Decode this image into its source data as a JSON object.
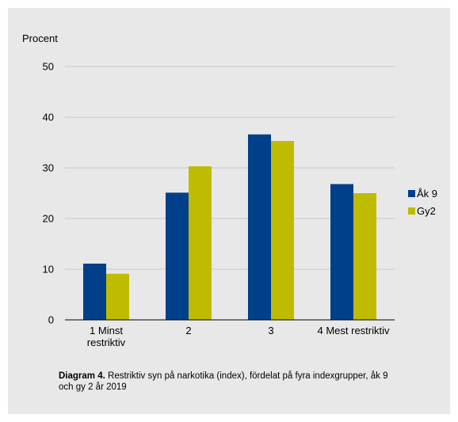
{
  "chart_data": {
    "type": "bar",
    "ylabel": "Procent",
    "ylim": [
      0,
      50
    ],
    "yticks": [
      0,
      10,
      20,
      30,
      40,
      50
    ],
    "grid": true,
    "legend_position": "right",
    "categories": [
      [
        "1 Minst",
        "restriktiv"
      ],
      [
        "2"
      ],
      [
        "3"
      ],
      [
        "4 Mest restriktiv"
      ]
    ],
    "series": [
      {
        "name": "Åk 9",
        "color": "#003f8a",
        "values": [
          11.1,
          25.1,
          36.6,
          26.8
        ]
      },
      {
        "name": "Gy2",
        "color": "#bfbb00",
        "values": [
          9.1,
          30.3,
          35.3,
          25.0
        ]
      }
    ]
  },
  "caption": {
    "label": "Diagram 4.",
    "text": " Restriktiv syn på narkotika (index), fördelat på fyra indexgrupper,  åk 9 och gy 2 år 2019"
  }
}
